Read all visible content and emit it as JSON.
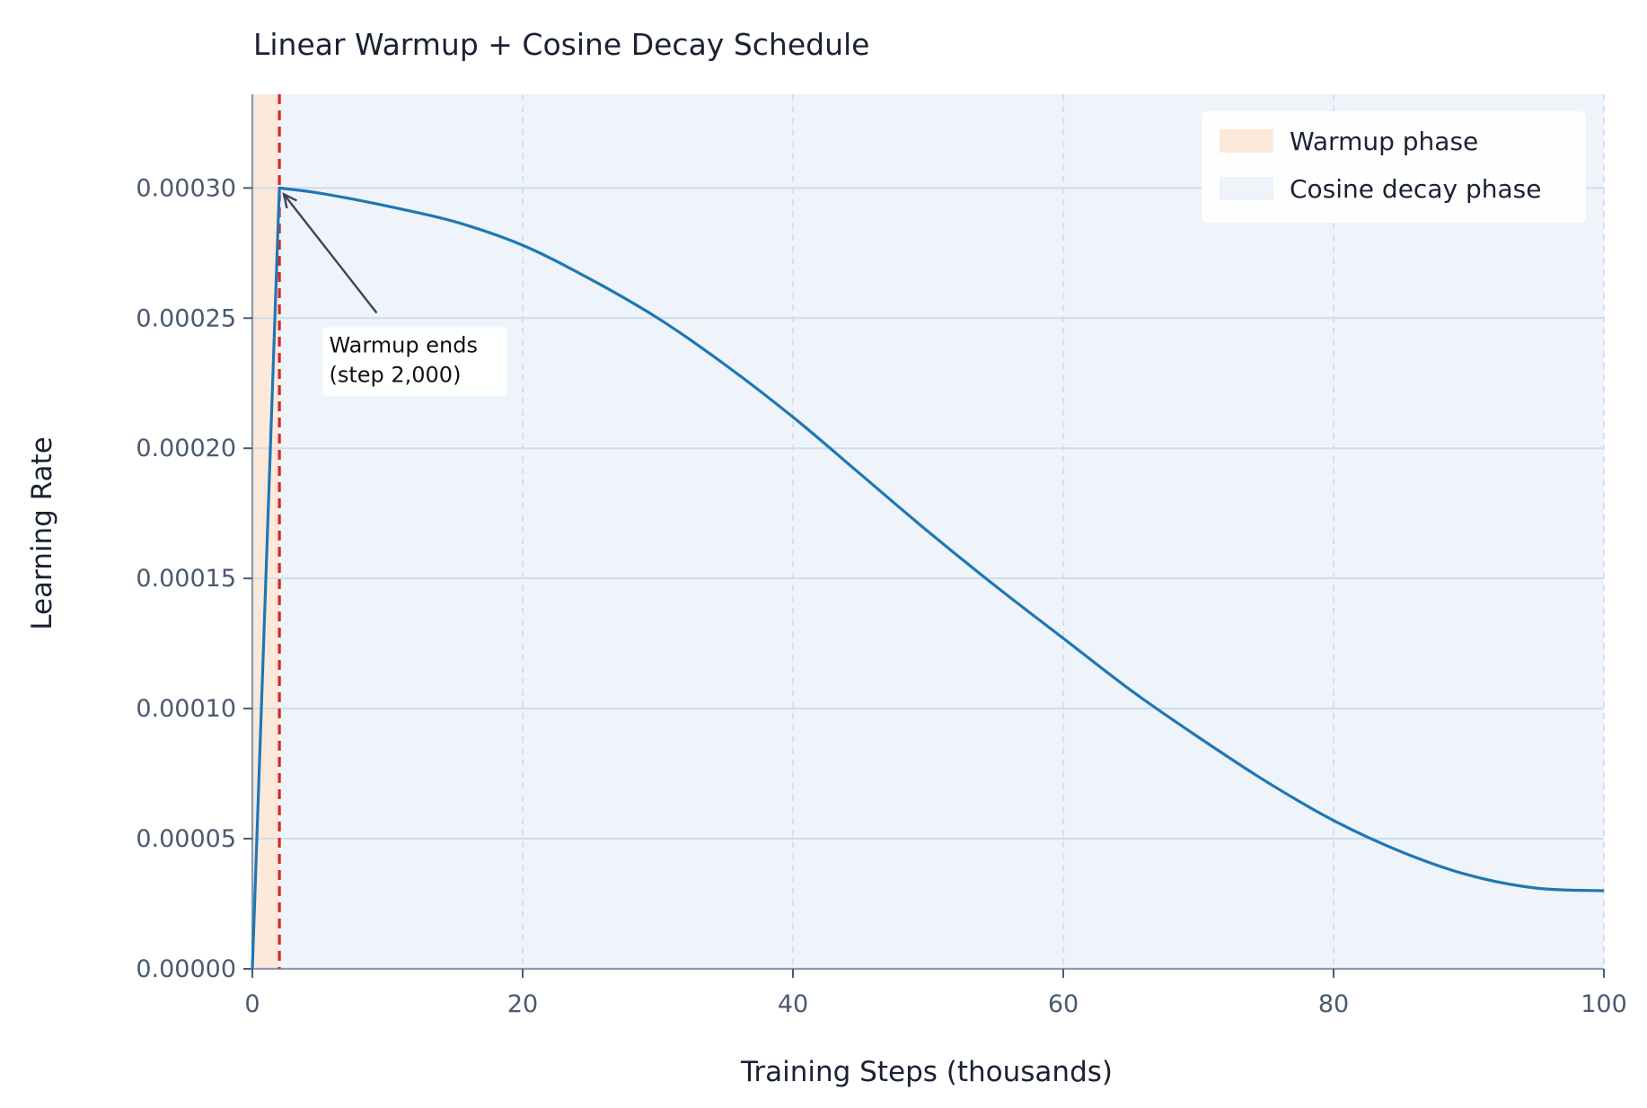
{
  "chart_data": {
    "type": "line",
    "title": "Linear Warmup + Cosine Decay Schedule",
    "xlabel": "Training Steps (thousands)",
    "ylabel": "Learning Rate",
    "xlim": [
      0,
      100
    ],
    "ylim": [
      0,
      0.000336
    ],
    "x_ticks": [
      0,
      20,
      40,
      60,
      80,
      100
    ],
    "x_tick_labels": [
      "0",
      "20",
      "40",
      "60",
      "80",
      "100"
    ],
    "y_ticks": [
      0,
      5e-05,
      0.0001,
      0.00015,
      0.0002,
      0.00025,
      0.0003
    ],
    "y_tick_labels": [
      "0.00000",
      "0.00005",
      "0.00010",
      "0.00015",
      "0.00020",
      "0.00025",
      "0.00030"
    ],
    "grid": true,
    "series": [
      {
        "color": "#1f77b4",
        "x": [
          0,
          2,
          5,
          10,
          15,
          20,
          25,
          30,
          35,
          40,
          45,
          50,
          55,
          60,
          65,
          70,
          75,
          80,
          85,
          90,
          95,
          100
        ],
        "y": [
          0,
          0.0003,
          0.000298,
          0.000293,
          0.000287,
          0.000278,
          0.000265,
          0.00025,
          0.000232,
          0.000212,
          0.00019,
          0.000168,
          0.000147,
          0.000127,
          0.000107,
          8.9e-05,
          7.2e-05,
          5.7e-05,
          4.5e-05,
          3.6e-05,
          3.1e-05,
          3e-05
        ]
      }
    ],
    "regions": [
      {
        "label": "Warmup phase",
        "x0": 0,
        "x1": 2,
        "color": "#fde9d9"
      },
      {
        "label": "Cosine decay phase",
        "x0": 2,
        "x1": 100,
        "color": "#eef4f9"
      }
    ],
    "vline": {
      "x": 2,
      "color": "#d62728"
    },
    "annotation": {
      "lines": [
        "Warmup ends",
        "(step 2,000)"
      ],
      "point": {
        "x": 2,
        "y": 0.0003
      },
      "text_at": {
        "x": 9.2,
        "y": 0.000252
      }
    },
    "legend": {
      "position": "top-right",
      "entries": [
        {
          "label": "Warmup phase",
          "color": "#fde9d9"
        },
        {
          "label": "Cosine decay phase",
          "color": "#eef4f9"
        }
      ]
    }
  }
}
